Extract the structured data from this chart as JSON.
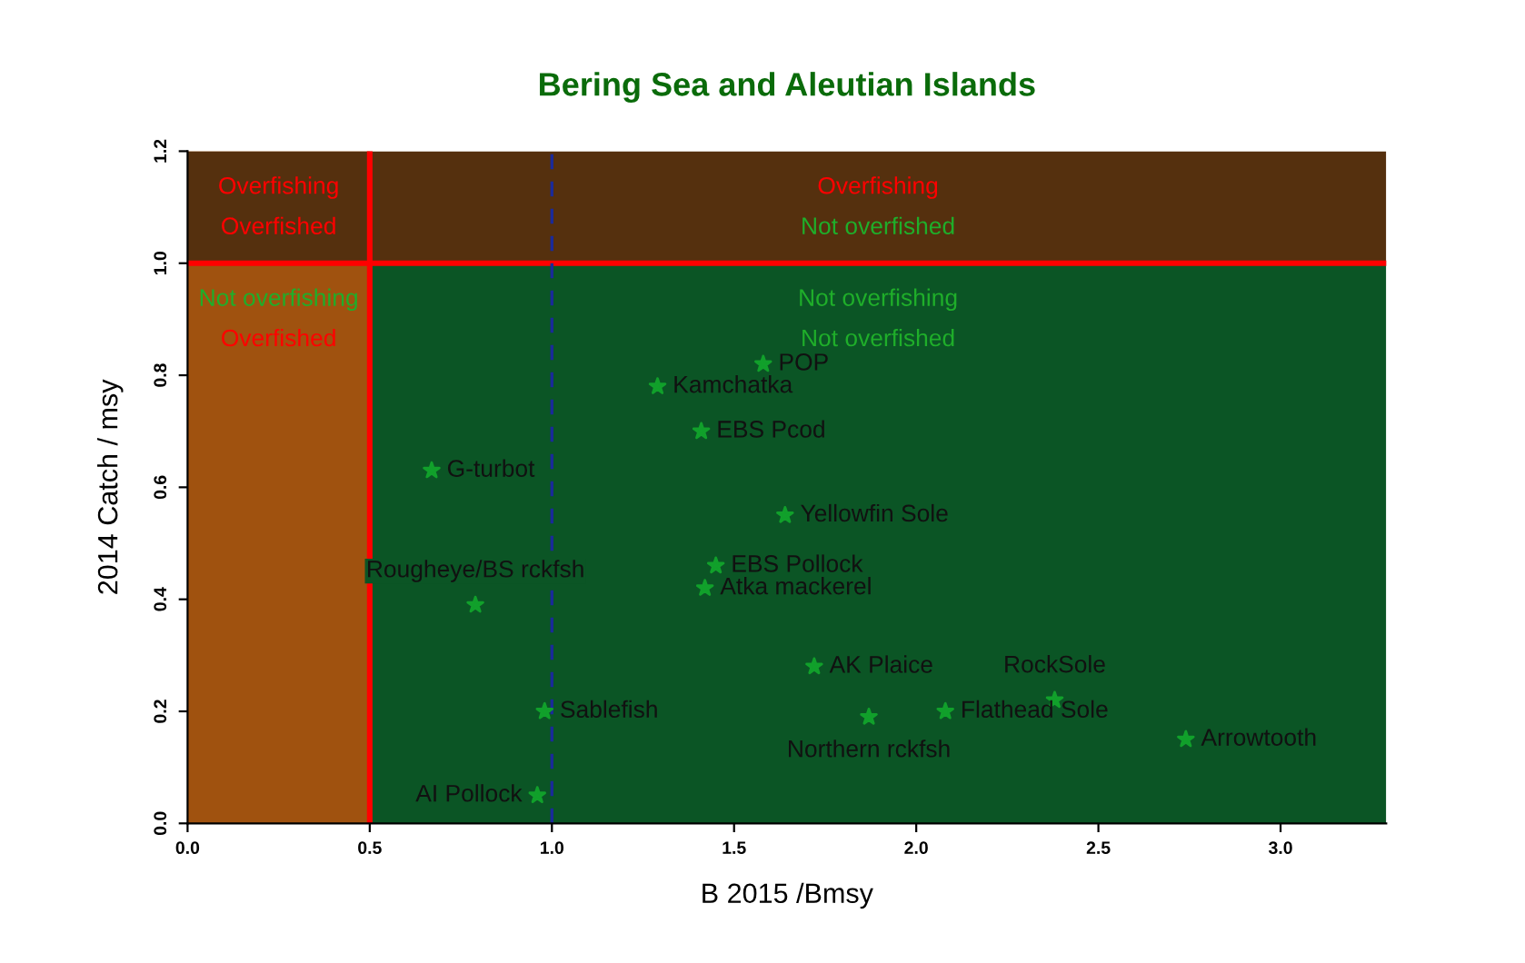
{
  "chart_data": {
    "type": "scatter",
    "title": "Bering Sea and Aleutian Islands",
    "xlabel": "B 2015 /Bmsy",
    "ylabel": "2014 Catch / msy",
    "xlim": [
      0,
      3.29
    ],
    "ylim": [
      0,
      1.2
    ],
    "xticks": [
      {
        "value": 0,
        "label": "0.0"
      },
      {
        "value": 0.5,
        "label": "0.5"
      },
      {
        "value": 1,
        "label": "1.0"
      },
      {
        "value": 1.5,
        "label": "1.5"
      },
      {
        "value": 2,
        "label": "2.0"
      },
      {
        "value": 2.5,
        "label": "2.5"
      },
      {
        "value": 3,
        "label": "3.0"
      }
    ],
    "yticks": [
      {
        "value": 0,
        "label": "0.0"
      },
      {
        "value": 0.2,
        "label": "0.2"
      },
      {
        "value": 0.4,
        "label": "0.4"
      },
      {
        "value": 0.6,
        "label": "0.6"
      },
      {
        "value": 0.8,
        "label": "0.8"
      },
      {
        "value": 1,
        "label": "1.0"
      },
      {
        "value": 1.2,
        "label": "1.2"
      }
    ],
    "grid": false,
    "legend": false,
    "marker": "star",
    "bands": [
      {
        "axis": "y",
        "from": 0,
        "to": 1,
        "color": "#0b5525"
      },
      {
        "axis": "x",
        "from": 0,
        "to": 0.5,
        "color": "#a0520f"
      },
      {
        "axis": "y",
        "from": 1,
        "to": 1.2,
        "color": "#55300e"
      }
    ],
    "ref_lines": [
      {
        "axis": "y",
        "value": 1,
        "color": "#ff0000",
        "line_style": "solid"
      },
      {
        "axis": "x",
        "value": 0.5,
        "color": "#ff0000",
        "line_style": "solid"
      },
      {
        "axis": "x",
        "value": 1,
        "color": "#1a2a9a",
        "line_style": "dashed"
      }
    ],
    "series": [
      {
        "color": "#11a02b",
        "x": [
          1.58,
          1.29,
          1.41,
          0.67,
          1.64,
          1.45,
          1.42,
          0.79,
          1.72,
          2.08,
          1.87,
          2.38,
          2.74,
          0.98,
          0.96
        ],
        "values": [
          0.82,
          0.78,
          0.7,
          0.63,
          0.55,
          0.46,
          0.42,
          0.39,
          0.28,
          0.2,
          0.19,
          0.22,
          0.15,
          0.2,
          0.05
        ]
      }
    ],
    "annotations": [
      {
        "text": "POP",
        "x": 1.58,
        "y": 0.82
      },
      {
        "text": "Kamchatka",
        "x": 1.29,
        "y": 0.78
      },
      {
        "text": "EBS Pcod",
        "x": 1.41,
        "y": 0.7
      },
      {
        "text": "G-turbot",
        "x": 0.67,
        "y": 0.63
      },
      {
        "text": "Yellowfin Sole",
        "x": 1.64,
        "y": 0.55
      },
      {
        "text": "EBS Pollock",
        "x": 1.45,
        "y": 0.46
      },
      {
        "text": "Atka mackerel",
        "x": 1.42,
        "y": 0.42
      },
      {
        "text": "Rougheye/BS rckfsh",
        "x": 0.79,
        "y": 0.39
      },
      {
        "text": "AK Plaice",
        "x": 1.72,
        "y": 0.28
      },
      {
        "text": "Flathead Sole",
        "x": 2.08,
        "y": 0.2
      },
      {
        "text": "Northern rckfsh",
        "x": 1.87,
        "y": 0.19
      },
      {
        "text": "RockSole",
        "x": 2.38,
        "y": 0.22
      },
      {
        "text": "Arrowtooth",
        "x": 2.74,
        "y": 0.15
      },
      {
        "text": "Sablefish",
        "x": 0.98,
        "y": 0.2
      },
      {
        "text": "AI Pollock",
        "x": 0.96,
        "y": 0.05
      },
      "Overfishing",
      "Overfished",
      "Overfishing",
      "Not overfished",
      "Not overfishing",
      "Overfished",
      "Not overfishing",
      "Not overfished"
    ]
  }
}
